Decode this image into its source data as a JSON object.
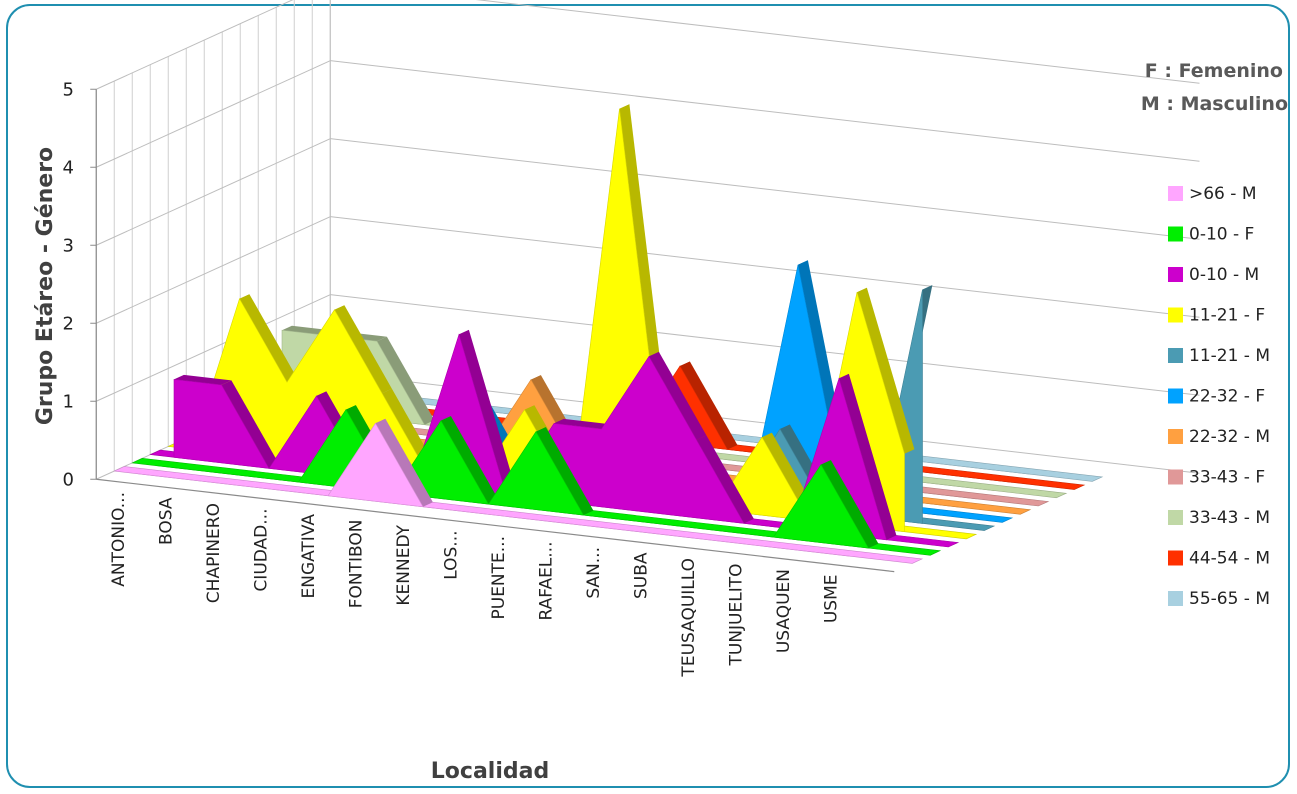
{
  "notes": {
    "female": "F : Femenino",
    "male": "M : Masculino"
  },
  "chart_data": {
    "type": "area",
    "view": "3d",
    "xlabel": "Localidad",
    "ylabel": "Grupo Etáreo - Género",
    "ylim": [
      0,
      5
    ],
    "yticks": [
      "0",
      "1",
      "2",
      "3",
      "4",
      "5"
    ],
    "grid": true,
    "legend_position": "right",
    "categories": [
      "ANTONIO...",
      "BOSA",
      "CHAPINERO",
      "CIUDAD...",
      "ENGATIVA",
      "FONTIBON",
      "KENNEDY",
      "LOS...",
      "PUENTE...",
      "RAFAEL...",
      "SAN...",
      "SUBA",
      "TEUSAQUILLO",
      "TUNJUELITO",
      "USAQUEN",
      "USME"
    ],
    "series": [
      {
        "name": ">66 - M",
        "color": "#ffa6ff",
        "values": [
          0,
          0,
          0,
          0,
          0,
          1,
          0,
          0,
          0,
          0,
          0,
          0,
          0,
          0,
          0,
          0
        ]
      },
      {
        "name": "0-10 - F",
        "color": "#00ee00",
        "values": [
          0,
          0,
          0,
          0,
          1,
          0,
          1,
          0,
          1,
          0,
          0,
          0,
          0,
          0,
          1,
          0
        ]
      },
      {
        "name": "0-10 - M",
        "color": "#cc00cc",
        "values": [
          1,
          1,
          0,
          1,
          0,
          0,
          2,
          0,
          1,
          1,
          2,
          1,
          0,
          0,
          2,
          0
        ]
      },
      {
        "name": "11-21 - F",
        "color": "#ffff00",
        "values": [
          0,
          2,
          1,
          2,
          1,
          0,
          0,
          1,
          0,
          5,
          0,
          0,
          1,
          0,
          3,
          1
        ]
      },
      {
        "name": "11-21 - M",
        "color": "#4b9bb3",
        "values": [
          0,
          0,
          0,
          0,
          0,
          0,
          0,
          0,
          0,
          0,
          0,
          0,
          1,
          0,
          0,
          3
        ]
      },
      {
        "name": "22-32 - F",
        "color": "#00a2ff",
        "values": [
          0,
          0,
          0,
          0,
          0,
          1,
          0,
          0,
          0,
          0,
          0,
          0,
          3,
          0,
          0,
          0
        ]
      },
      {
        "name": "22-32 - M",
        "color": "#ffa040",
        "values": [
          0,
          0,
          0,
          0,
          0,
          0,
          1,
          0,
          0,
          0,
          0,
          0,
          0,
          0,
          0,
          0
        ]
      },
      {
        "name": "33-43 - F",
        "color": "#e09898",
        "values": [
          0,
          0,
          0,
          0,
          0,
          0,
          0,
          0,
          0,
          0,
          0,
          0,
          0,
          0,
          0,
          0
        ]
      },
      {
        "name": "33-43 - M",
        "color": "#c0d8a6",
        "values": [
          1,
          1,
          1,
          0,
          0,
          0,
          0,
          1,
          0,
          0,
          0,
          0,
          0,
          0,
          0,
          0
        ]
      },
      {
        "name": "44-54 - M",
        "color": "#ff3000",
        "values": [
          0,
          0,
          0,
          0,
          0,
          0,
          0,
          0,
          1,
          0,
          0,
          0,
          0,
          0,
          0,
          0
        ]
      },
      {
        "name": "55-65 - M",
        "color": "#a8d0e0",
        "values": [
          0,
          0,
          0,
          0,
          0,
          0,
          0,
          0,
          0,
          0,
          0,
          0,
          0,
          0,
          0,
          0
        ]
      }
    ]
  }
}
